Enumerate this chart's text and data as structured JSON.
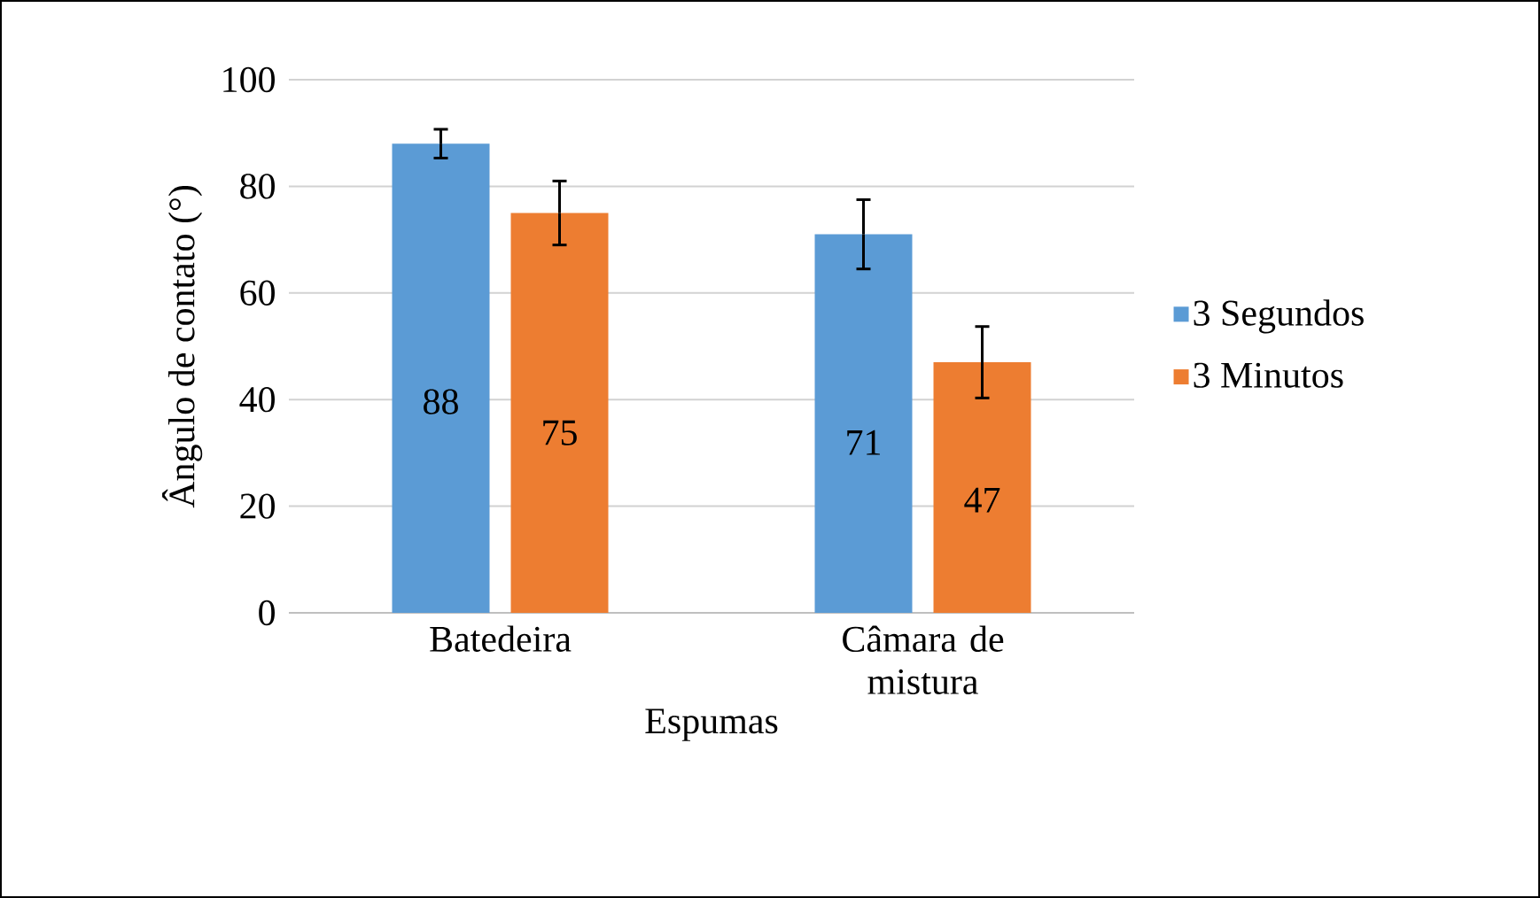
{
  "chart_data": {
    "type": "bar",
    "xlabel": "Espumas",
    "ylabel": "Ângulo de contato (°)",
    "categories": [
      "Batedeira",
      "Câmara de mistura"
    ],
    "series": [
      {
        "name": "3 Segundos",
        "color": "#5b9bd5",
        "values": [
          88,
          71
        ],
        "errors": [
          2.7,
          6.5
        ]
      },
      {
        "name": "3 Minutos",
        "color": "#ed7d31",
        "values": [
          75,
          47
        ],
        "errors": [
          6,
          6.7
        ]
      }
    ],
    "ylim": [
      0,
      100
    ],
    "yticks": [
      0,
      20,
      40,
      60,
      80,
      100
    ],
    "grid": "y",
    "legend": "right",
    "data_labels": true
  }
}
